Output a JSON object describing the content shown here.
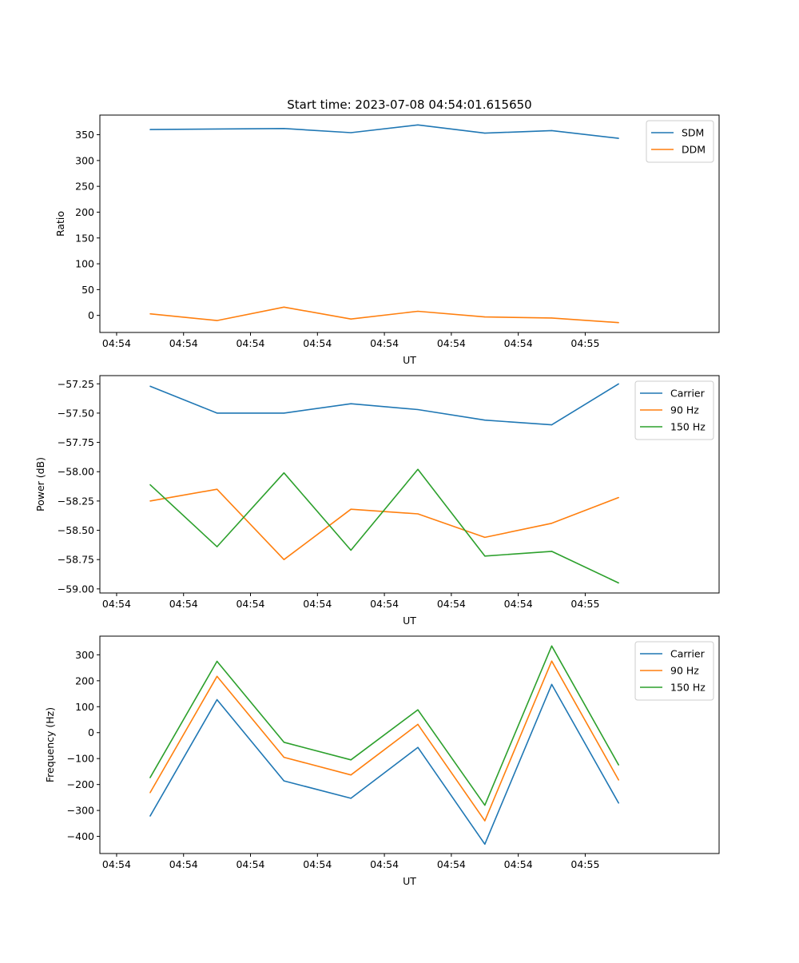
{
  "figure": {
    "title": "Start time: 2023-07-08 04:54:01.615650"
  },
  "chart_data": [
    {
      "type": "line",
      "title": "Start time: 2023-07-08 04:54:01.615650",
      "xlabel": "UT",
      "ylabel": "Ratio",
      "x_ticks": [
        "04:54",
        "04:54",
        "04:54",
        "04:54",
        "04:54",
        "04:54",
        "04:54",
        "04:55"
      ],
      "y_ticks": [
        "0",
        "50",
        "100",
        "150",
        "200",
        "250",
        "300",
        "350"
      ],
      "y_tick_values": [
        0,
        50,
        100,
        150,
        200,
        250,
        300,
        350
      ],
      "xlim": [
        -0.75,
        8.5
      ],
      "ylim": [
        -33,
        388
      ],
      "legend_position": "top-right",
      "series": [
        {
          "name": "SDM",
          "color": "#1f77b4",
          "x": [
            0,
            1,
            2,
            3,
            4,
            5,
            6,
            7
          ],
          "y": [
            360,
            361,
            362,
            354,
            369,
            353,
            358,
            343
          ]
        },
        {
          "name": "DDM",
          "color": "#ff7f0e",
          "x": [
            0,
            1,
            2,
            3,
            4,
            5,
            6,
            7
          ],
          "y": [
            3,
            -10,
            16,
            -7,
            8,
            -3,
            -5,
            -14
          ]
        }
      ]
    },
    {
      "type": "line",
      "title": "",
      "xlabel": "UT",
      "ylabel": "Power (dB)",
      "x_ticks": [
        "04:54",
        "04:54",
        "04:54",
        "04:54",
        "04:54",
        "04:54",
        "04:54",
        "04:55"
      ],
      "y_ticks": [
        "−59.00",
        "−58.75",
        "−58.50",
        "−58.25",
        "−58.00",
        "−57.75",
        "−57.50",
        "−57.25"
      ],
      "y_tick_values": [
        -59.0,
        -58.75,
        -58.5,
        -58.25,
        -58.0,
        -57.75,
        -57.5,
        -57.25
      ],
      "xlim": [
        -0.75,
        8.5
      ],
      "ylim": [
        -59.035,
        -57.18
      ],
      "legend_position": "top-right",
      "series": [
        {
          "name": "Carrier",
          "color": "#1f77b4",
          "x": [
            0,
            1,
            2,
            3,
            4,
            5,
            6,
            7
          ],
          "y": [
            -57.27,
            -57.5,
            -57.5,
            -57.42,
            -57.47,
            -57.56,
            -57.6,
            -57.25
          ]
        },
        {
          "name": "90 Hz",
          "color": "#ff7f0e",
          "x": [
            0,
            1,
            2,
            3,
            4,
            5,
            6,
            7
          ],
          "y": [
            -58.25,
            -58.15,
            -58.75,
            -58.32,
            -58.36,
            -58.56,
            -58.44,
            -58.22
          ]
        },
        {
          "name": "150 Hz",
          "color": "#2ca02c",
          "x": [
            0,
            1,
            2,
            3,
            4,
            5,
            6,
            7
          ],
          "y": [
            -58.11,
            -58.64,
            -58.01,
            -58.67,
            -57.98,
            -58.72,
            -58.68,
            -58.95
          ]
        }
      ]
    },
    {
      "type": "line",
      "title": "",
      "xlabel": "UT",
      "ylabel": "Frequency (Hz)",
      "x_ticks": [
        "04:54",
        "04:54",
        "04:54",
        "04:54",
        "04:54",
        "04:54",
        "04:54",
        "04:55"
      ],
      "y_ticks": [
        "−400",
        "−300",
        "−200",
        "−100",
        "0",
        "100",
        "200",
        "300"
      ],
      "y_tick_values": [
        -400,
        -300,
        -200,
        -100,
        0,
        100,
        200,
        300
      ],
      "xlim": [
        -0.75,
        8.5
      ],
      "ylim": [
        -466,
        372
      ],
      "legend_position": "top-right",
      "series": [
        {
          "name": "Carrier",
          "color": "#1f77b4",
          "x": [
            0,
            1,
            2,
            3,
            4,
            5,
            6,
            7
          ],
          "y": [
            -322,
            127,
            -186,
            -253,
            -57,
            -430,
            186,
            -272
          ]
        },
        {
          "name": "90 Hz",
          "color": "#ff7f0e",
          "x": [
            0,
            1,
            2,
            3,
            4,
            5,
            6,
            7
          ],
          "y": [
            -232,
            217,
            -95,
            -163,
            32,
            -340,
            276,
            -183
          ]
        },
        {
          "name": "150 Hz",
          "color": "#2ca02c",
          "x": [
            0,
            1,
            2,
            3,
            4,
            5,
            6,
            7
          ],
          "y": [
            -174,
            275,
            -37,
            -105,
            88,
            -280,
            334,
            -125
          ]
        }
      ]
    }
  ]
}
